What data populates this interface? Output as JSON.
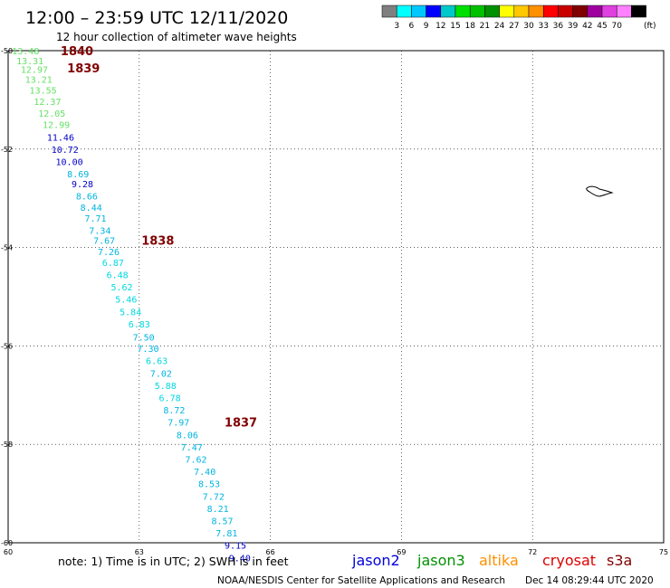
{
  "header": {
    "title": "12:00 – 23:59 UTC 12/11/2020",
    "subtitle": "12 hour collection of altimeter wave heights"
  },
  "legend": {
    "swatches": [
      {
        "color": "#7f7f7f",
        "label": ""
      },
      {
        "color": "#00ffff",
        "label": "3"
      },
      {
        "color": "#00c8ff",
        "label": "6"
      },
      {
        "color": "#0000ff",
        "label": "9"
      },
      {
        "color": "#00c8c8",
        "label": "12"
      },
      {
        "color": "#00e000",
        "label": "15"
      },
      {
        "color": "#00c000",
        "label": "18"
      },
      {
        "color": "#009000",
        "label": "21"
      },
      {
        "color": "#ffff00",
        "label": "24"
      },
      {
        "color": "#ffc800",
        "label": "27"
      },
      {
        "color": "#ff9000",
        "label": "30"
      },
      {
        "color": "#ff0000",
        "label": "33"
      },
      {
        "color": "#c80000",
        "label": "36"
      },
      {
        "color": "#800000",
        "label": "39"
      },
      {
        "color": "#a000a0",
        "label": "42"
      },
      {
        "color": "#e040e0",
        "label": "45"
      },
      {
        "color": "#ff80ff",
        "label": "70"
      },
      {
        "color": "#000000",
        "label": ""
      }
    ],
    "unit": "(ft)"
  },
  "axes": {
    "lat_ticks": [
      "-50",
      "-52",
      "-54",
      "-56",
      "-58",
      "-60"
    ],
    "lon_ticks": [
      "60",
      "63",
      "66",
      "69",
      "72",
      "75"
    ]
  },
  "chart_data": {
    "type": "scatter",
    "x_range": [
      60,
      75
    ],
    "y_range": [
      -60,
      -50
    ],
    "grid": true,
    "time_labels": [
      {
        "text": "1840",
        "lon": 61.2,
        "lat": -50.0
      },
      {
        "text": "1839",
        "lon": 61.35,
        "lat": -50.35
      },
      {
        "text": "1838",
        "lon": 63.05,
        "lat": -53.85
      },
      {
        "text": "1837",
        "lon": 64.95,
        "lat": -57.55
      }
    ],
    "points": [
      {
        "lon": 60.4,
        "lat": -50.0,
        "swh": "13.48",
        "color": "#66e066"
      },
      {
        "lon": 60.5,
        "lat": -50.2,
        "swh": "13.31",
        "color": "#66e066"
      },
      {
        "lon": 60.6,
        "lat": -50.38,
        "swh": "12.97",
        "color": "#66e066"
      },
      {
        "lon": 60.7,
        "lat": -50.58,
        "swh": "13.21",
        "color": "#66e066"
      },
      {
        "lon": 60.8,
        "lat": -50.8,
        "swh": "13.55",
        "color": "#66e066"
      },
      {
        "lon": 60.9,
        "lat": -51.03,
        "swh": "12.37",
        "color": "#66e066"
      },
      {
        "lon": 61.0,
        "lat": -51.27,
        "swh": "12.05",
        "color": "#66e066"
      },
      {
        "lon": 61.1,
        "lat": -51.5,
        "swh": "12.99",
        "color": "#66e066"
      },
      {
        "lon": 61.2,
        "lat": -51.76,
        "swh": "11.46",
        "color": "#0000c8"
      },
      {
        "lon": 61.3,
        "lat": -52.0,
        "swh": "10.72",
        "color": "#0000c8"
      },
      {
        "lon": 61.4,
        "lat": -52.25,
        "swh": "10.00",
        "color": "#0000c8"
      },
      {
        "lon": 61.6,
        "lat": -52.5,
        "swh": "8.69",
        "color": "#00b4e0"
      },
      {
        "lon": 61.7,
        "lat": -52.7,
        "swh": "9.28",
        "color": "#0000c8"
      },
      {
        "lon": 61.8,
        "lat": -52.95,
        "swh": "8.66",
        "color": "#00b4e0"
      },
      {
        "lon": 61.9,
        "lat": -53.18,
        "swh": "8.44",
        "color": "#00b4e0"
      },
      {
        "lon": 62.0,
        "lat": -53.4,
        "swh": "7.71",
        "color": "#00b4e0"
      },
      {
        "lon": 62.1,
        "lat": -53.65,
        "swh": "7.34",
        "color": "#00b4e0"
      },
      {
        "lon": 62.2,
        "lat": -53.85,
        "swh": "7.67",
        "color": "#00b4e0"
      },
      {
        "lon": 62.3,
        "lat": -54.08,
        "swh": "7.26",
        "color": "#00b4e0"
      },
      {
        "lon": 62.4,
        "lat": -54.3,
        "swh": "6.87",
        "color": "#00d8e0"
      },
      {
        "lon": 62.5,
        "lat": -54.55,
        "swh": "6.48",
        "color": "#00d8e0"
      },
      {
        "lon": 62.6,
        "lat": -54.8,
        "swh": "5.62",
        "color": "#00d8e0"
      },
      {
        "lon": 62.7,
        "lat": -55.05,
        "swh": "5.46",
        "color": "#00d8e0"
      },
      {
        "lon": 62.8,
        "lat": -55.3,
        "swh": "5.84",
        "color": "#00d8e0"
      },
      {
        "lon": 63.0,
        "lat": -55.55,
        "swh": "6.83",
        "color": "#00d8e0"
      },
      {
        "lon": 63.1,
        "lat": -55.82,
        "swh": "7.50",
        "color": "#00b4e0"
      },
      {
        "lon": 63.2,
        "lat": -56.05,
        "swh": "7.30",
        "color": "#00b4e0"
      },
      {
        "lon": 63.4,
        "lat": -56.3,
        "swh": "6.63",
        "color": "#00d8e0"
      },
      {
        "lon": 63.5,
        "lat": -56.55,
        "swh": "7.02",
        "color": "#00b4e0"
      },
      {
        "lon": 63.6,
        "lat": -56.8,
        "swh": "5.88",
        "color": "#00d8e0"
      },
      {
        "lon": 63.7,
        "lat": -57.05,
        "swh": "6.78",
        "color": "#00d8e0"
      },
      {
        "lon": 63.8,
        "lat": -57.3,
        "swh": "8.72",
        "color": "#00b4e0"
      },
      {
        "lon": 63.9,
        "lat": -57.55,
        "swh": "7.97",
        "color": "#00b4e0"
      },
      {
        "lon": 64.1,
        "lat": -57.8,
        "swh": "8.06",
        "color": "#00b4e0"
      },
      {
        "lon": 64.2,
        "lat": -58.05,
        "swh": "7.47",
        "color": "#00b4e0"
      },
      {
        "lon": 64.3,
        "lat": -58.3,
        "swh": "7.62",
        "color": "#00b4e0"
      },
      {
        "lon": 64.5,
        "lat": -58.55,
        "swh": "7.40",
        "color": "#00b4e0"
      },
      {
        "lon": 64.6,
        "lat": -58.8,
        "swh": "8.53",
        "color": "#00b4e0"
      },
      {
        "lon": 64.7,
        "lat": -59.05,
        "swh": "7.72",
        "color": "#00b4e0"
      },
      {
        "lon": 64.8,
        "lat": -59.3,
        "swh": "8.21",
        "color": "#00b4e0"
      },
      {
        "lon": 64.9,
        "lat": -59.55,
        "swh": "8.57",
        "color": "#00b4e0"
      },
      {
        "lon": 65.0,
        "lat": -59.8,
        "swh": "7.81",
        "color": "#00b4e0"
      },
      {
        "lon": 65.2,
        "lat": -60.05,
        "swh": "9.15",
        "color": "#0000c8"
      },
      {
        "lon": 65.3,
        "lat": -60.3,
        "swh": "9.40",
        "color": "#0000c8"
      }
    ]
  },
  "footer": {
    "note": "note: 1) Time is in UTC; 2) SWH is in feet",
    "satellites": [
      {
        "name": "jason2",
        "color": "#0000dd"
      },
      {
        "name": "jason3",
        "color": "#009000"
      },
      {
        "name": "altika",
        "color": "#ff9000"
      },
      {
        "name": "cryosat",
        "color": "#dd0000"
      },
      {
        "name": "s3a",
        "color": "#800000"
      }
    ],
    "credit": "NOAA/NESDIS Center for Satellite Applications and Research",
    "timestamp": "Dec 14 08:29:44 UTC 2020"
  }
}
